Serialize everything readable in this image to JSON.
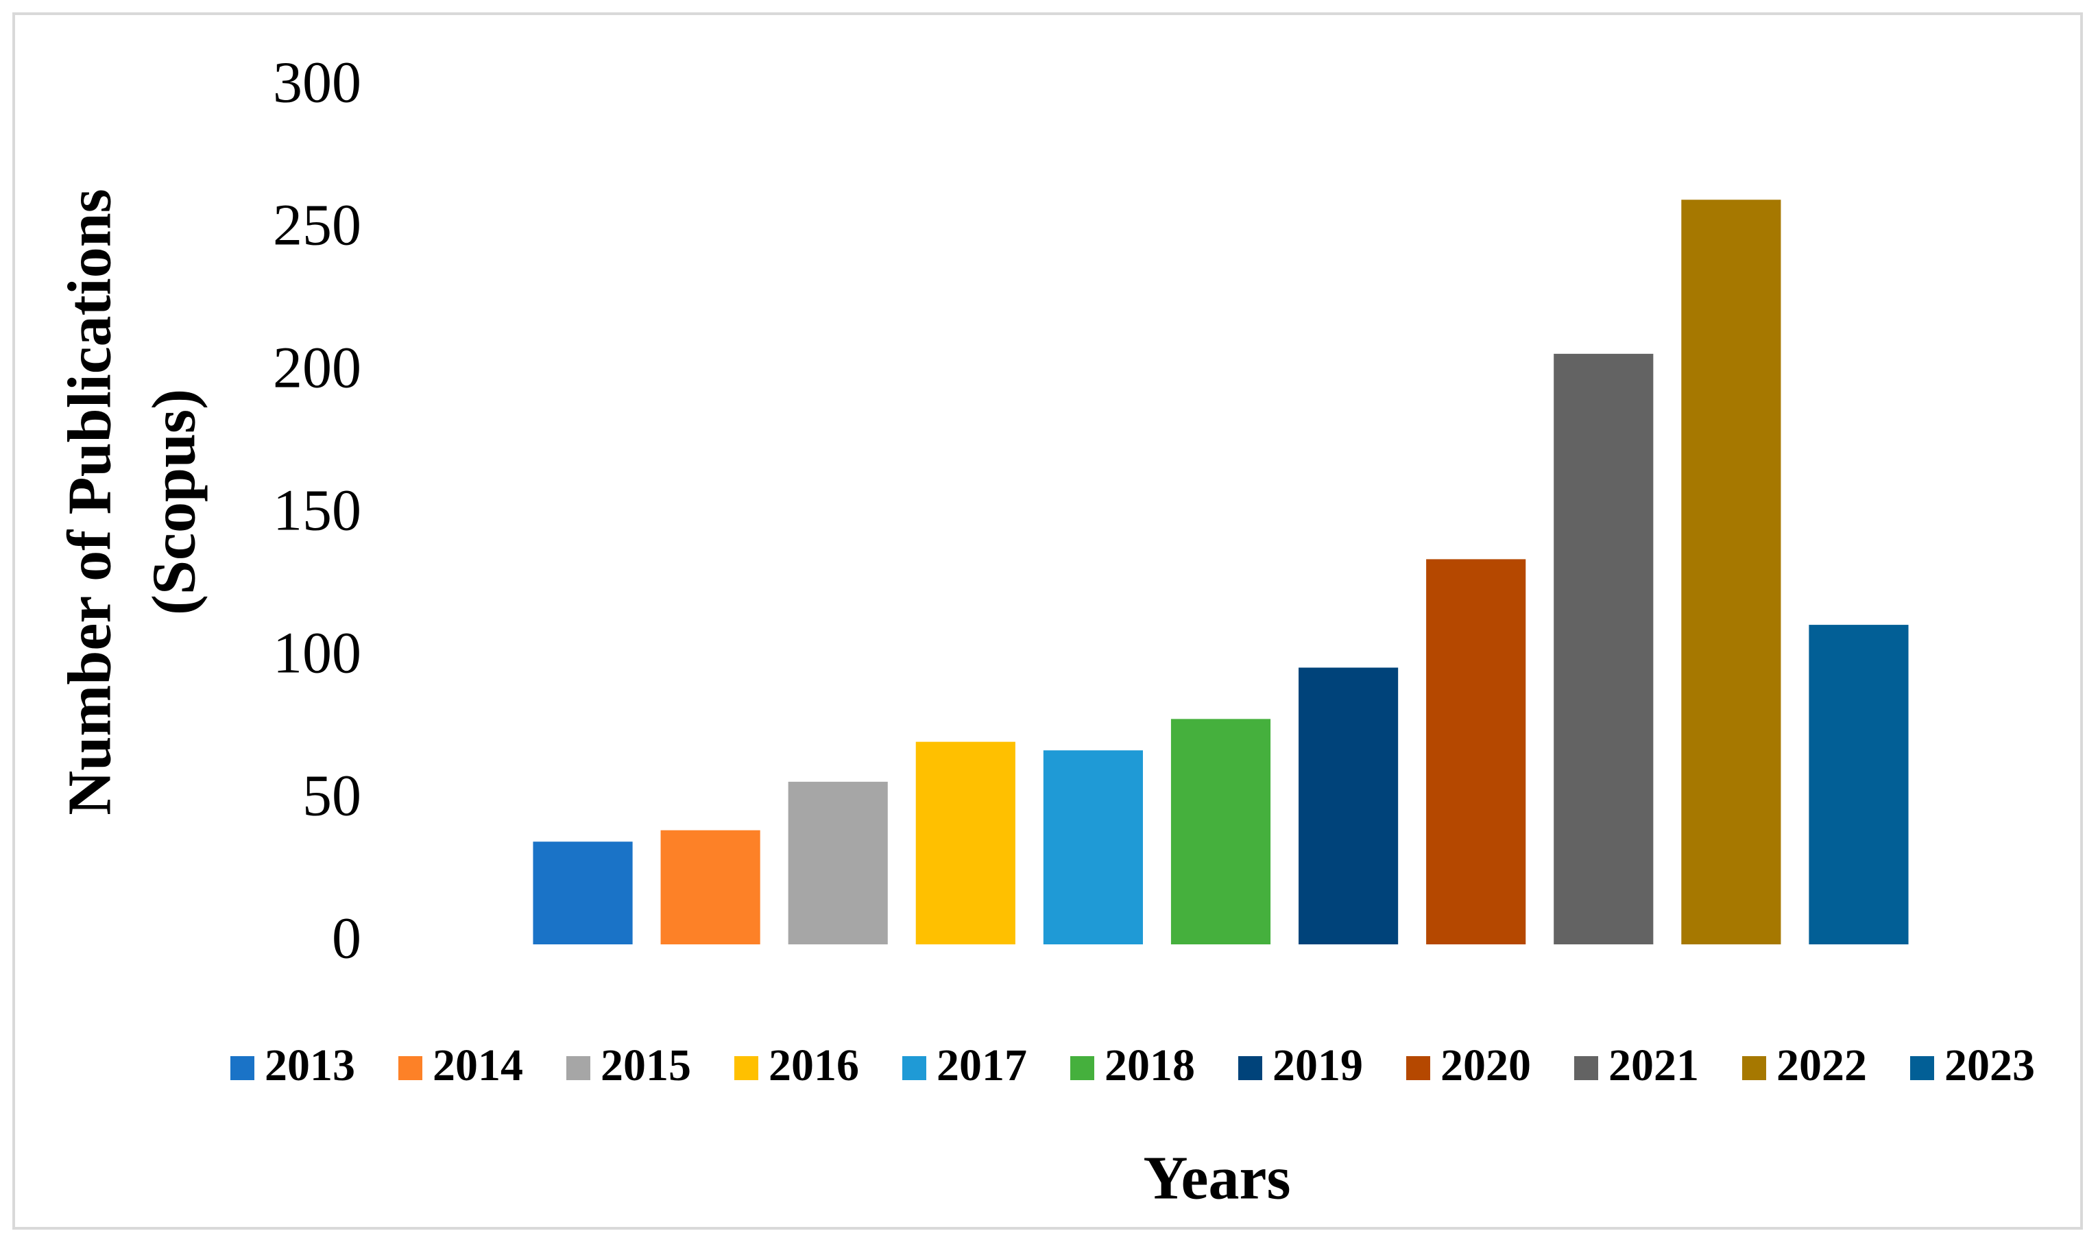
{
  "chart_data": {
    "type": "bar",
    "x_label": "Years",
    "y_label": [
      "Number of Publications",
      "(Scopus)"
    ],
    "ylim": [
      0,
      300
    ],
    "yticks": [
      0,
      50,
      100,
      150,
      200,
      250,
      300
    ],
    "grid": false,
    "legend": "bottom",
    "series": [
      {
        "name": "2013",
        "color": "#1a73c7",
        "values": [
          36
        ]
      },
      {
        "name": "2014",
        "color": "#fd8127",
        "values": [
          40
        ]
      },
      {
        "name": "2015",
        "color": "#a6a6a6",
        "values": [
          57
        ]
      },
      {
        "name": "2016",
        "color": "#ffc000",
        "values": [
          71
        ]
      },
      {
        "name": "2017",
        "color": "#1f9ad6",
        "values": [
          68
        ]
      },
      {
        "name": "2018",
        "color": "#45b03d",
        "values": [
          79
        ]
      },
      {
        "name": "2019",
        "color": "#00437a",
        "values": [
          97
        ]
      },
      {
        "name": "2020",
        "color": "#b54800",
        "values": [
          135
        ]
      },
      {
        "name": "2021",
        "color": "#636363",
        "values": [
          207
        ]
      },
      {
        "name": "2022",
        "color": "#a67800",
        "values": [
          261
        ]
      },
      {
        "name": "2023",
        "color": "#025f96",
        "values": [
          112
        ]
      }
    ]
  }
}
